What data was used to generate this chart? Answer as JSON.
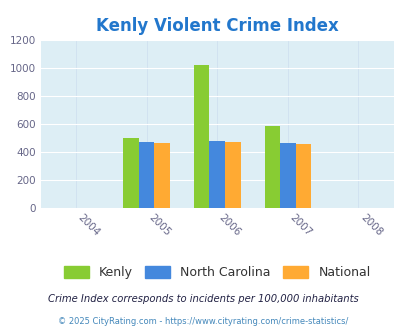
{
  "title": "Kenly Violent Crime Index",
  "title_color": "#2277cc",
  "years": [
    2004,
    2005,
    2006,
    2007,
    2008
  ],
  "bar_years": [
    2005,
    2006,
    2007
  ],
  "kenly": [
    500,
    1020,
    585
  ],
  "nc": [
    470,
    480,
    460
  ],
  "national": [
    465,
    468,
    455
  ],
  "bar_colors": [
    "#88cc33",
    "#4488dd",
    "#ffaa33"
  ],
  "legend_labels": [
    "Kenly",
    "North Carolina",
    "National"
  ],
  "ylim": [
    0,
    1200
  ],
  "yticks": [
    0,
    200,
    400,
    600,
    800,
    1000,
    1200
  ],
  "plot_bg": "#ddeef5",
  "note_text": "Crime Index corresponds to incidents per 100,000 inhabitants",
  "footer_text": "© 2025 CityRating.com - https://www.cityrating.com/crime-statistics/",
  "bar_width": 0.22
}
